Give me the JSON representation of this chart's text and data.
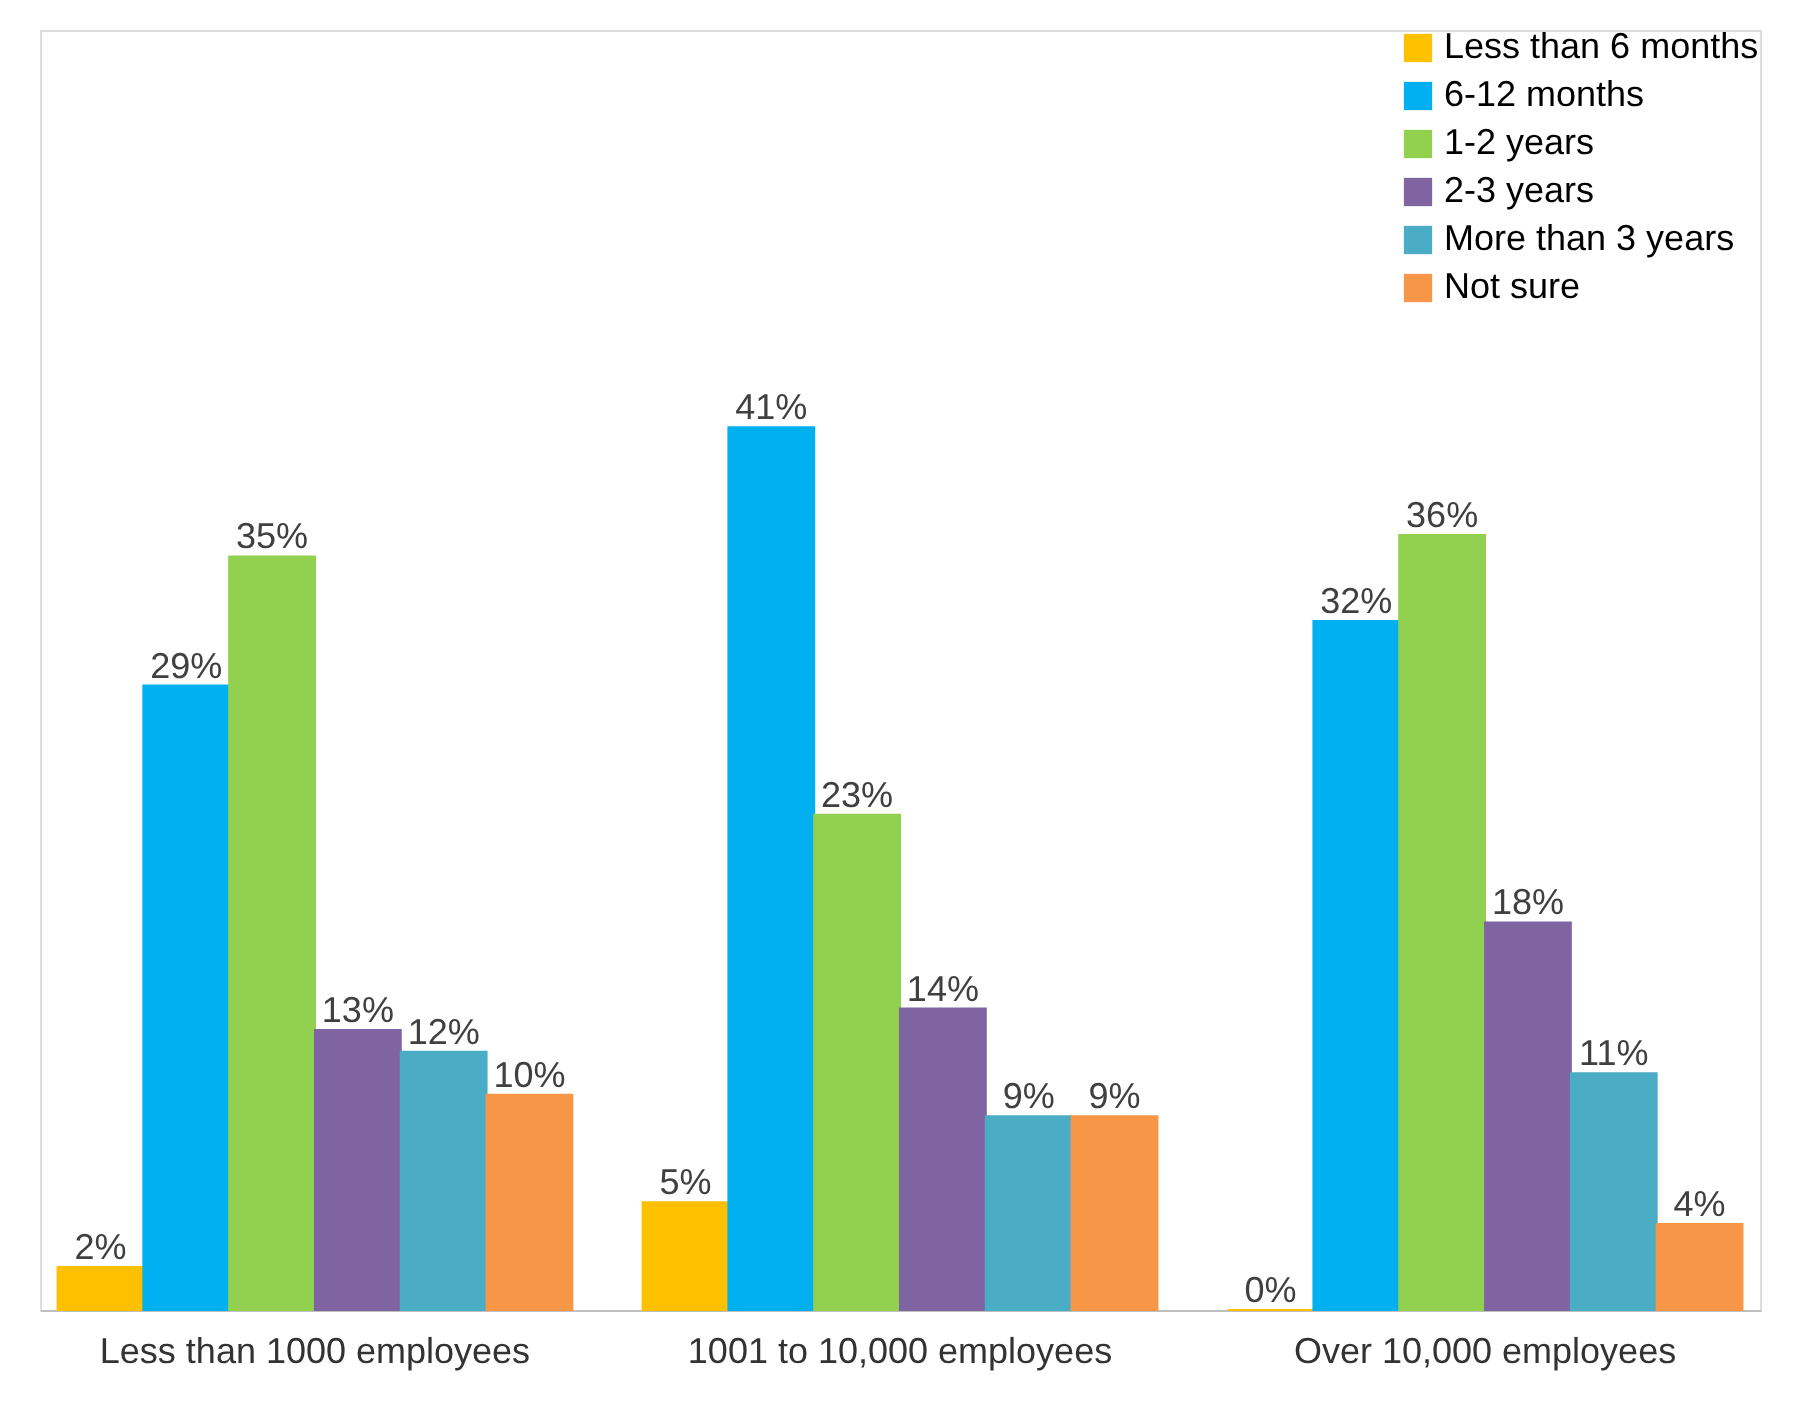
{
  "chart_data": {
    "type": "bar",
    "categories": [
      "Less than 1000 employees",
      "1001 to 10,000 employees",
      "Over 10,000 employees"
    ],
    "series": [
      {
        "name": "Less than 6 months",
        "color": "#ffc000",
        "values": [
          2,
          5,
          0
        ],
        "value_labels": [
          "2%",
          "5%",
          "0%"
        ]
      },
      {
        "name": "6-12 months",
        "color": "#00b0f0",
        "values": [
          29,
          41,
          32
        ],
        "value_labels": [
          "29%",
          "41%",
          "32%"
        ]
      },
      {
        "name": "1-2 years",
        "color": "#92d050",
        "values": [
          35,
          23,
          36
        ],
        "value_labels": [
          "35%",
          "23%",
          "36%"
        ]
      },
      {
        "name": "2-3 years",
        "color": "#8064a2",
        "values": [
          13,
          14,
          18
        ],
        "value_labels": [
          "13%",
          "14%",
          "18%"
        ]
      },
      {
        "name": "More than 3 years",
        "color": "#4bacc6",
        "values": [
          12,
          9,
          11
        ],
        "value_labels": [
          "12%",
          "9%",
          "11%"
        ]
      },
      {
        "name": "Not sure",
        "color": "#f79646",
        "values": [
          10,
          9,
          4
        ],
        "value_labels": [
          "10%",
          "9%",
          "4%"
        ]
      }
    ],
    "legend": "top right",
    "grid": false
  }
}
